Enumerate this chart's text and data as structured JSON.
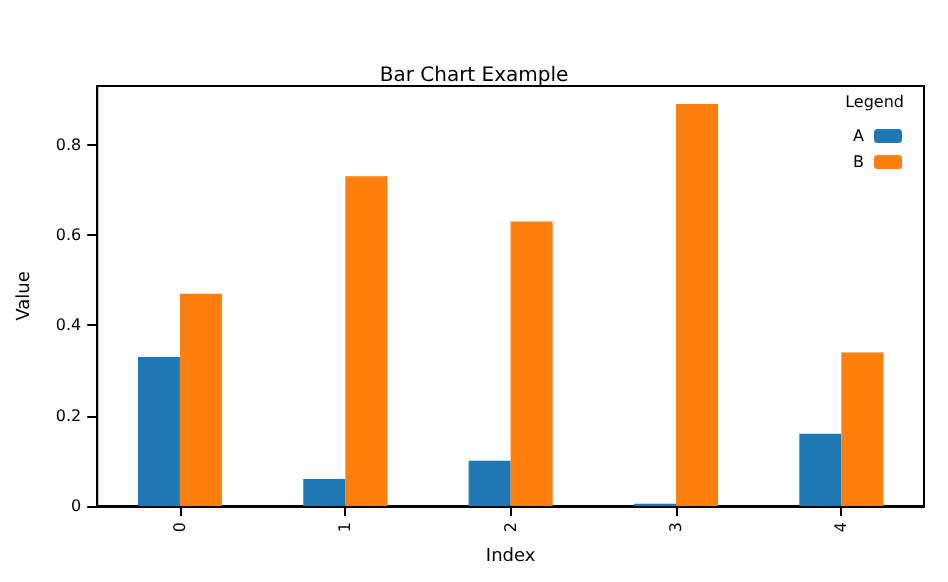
{
  "chart_data": {
    "type": "bar",
    "title": "Bar Chart Example",
    "xlabel": "Index",
    "ylabel": "Value",
    "legend_title": "Legend",
    "categories": [
      "0",
      "1",
      "2",
      "3",
      "4"
    ],
    "series": [
      {
        "name": "A",
        "color": "#1f77b4",
        "values": [
          0.33,
          0.06,
          0.1,
          0.005,
          0.16
        ]
      },
      {
        "name": "B",
        "color": "#ff7f0e",
        "values": [
          0.47,
          0.73,
          0.63,
          0.89,
          0.34
        ]
      }
    ],
    "ylim": [
      0,
      0.93
    ],
    "yticks": [
      0,
      0.2,
      0.4,
      0.6,
      0.8
    ],
    "legend": "top right",
    "grid": false
  }
}
